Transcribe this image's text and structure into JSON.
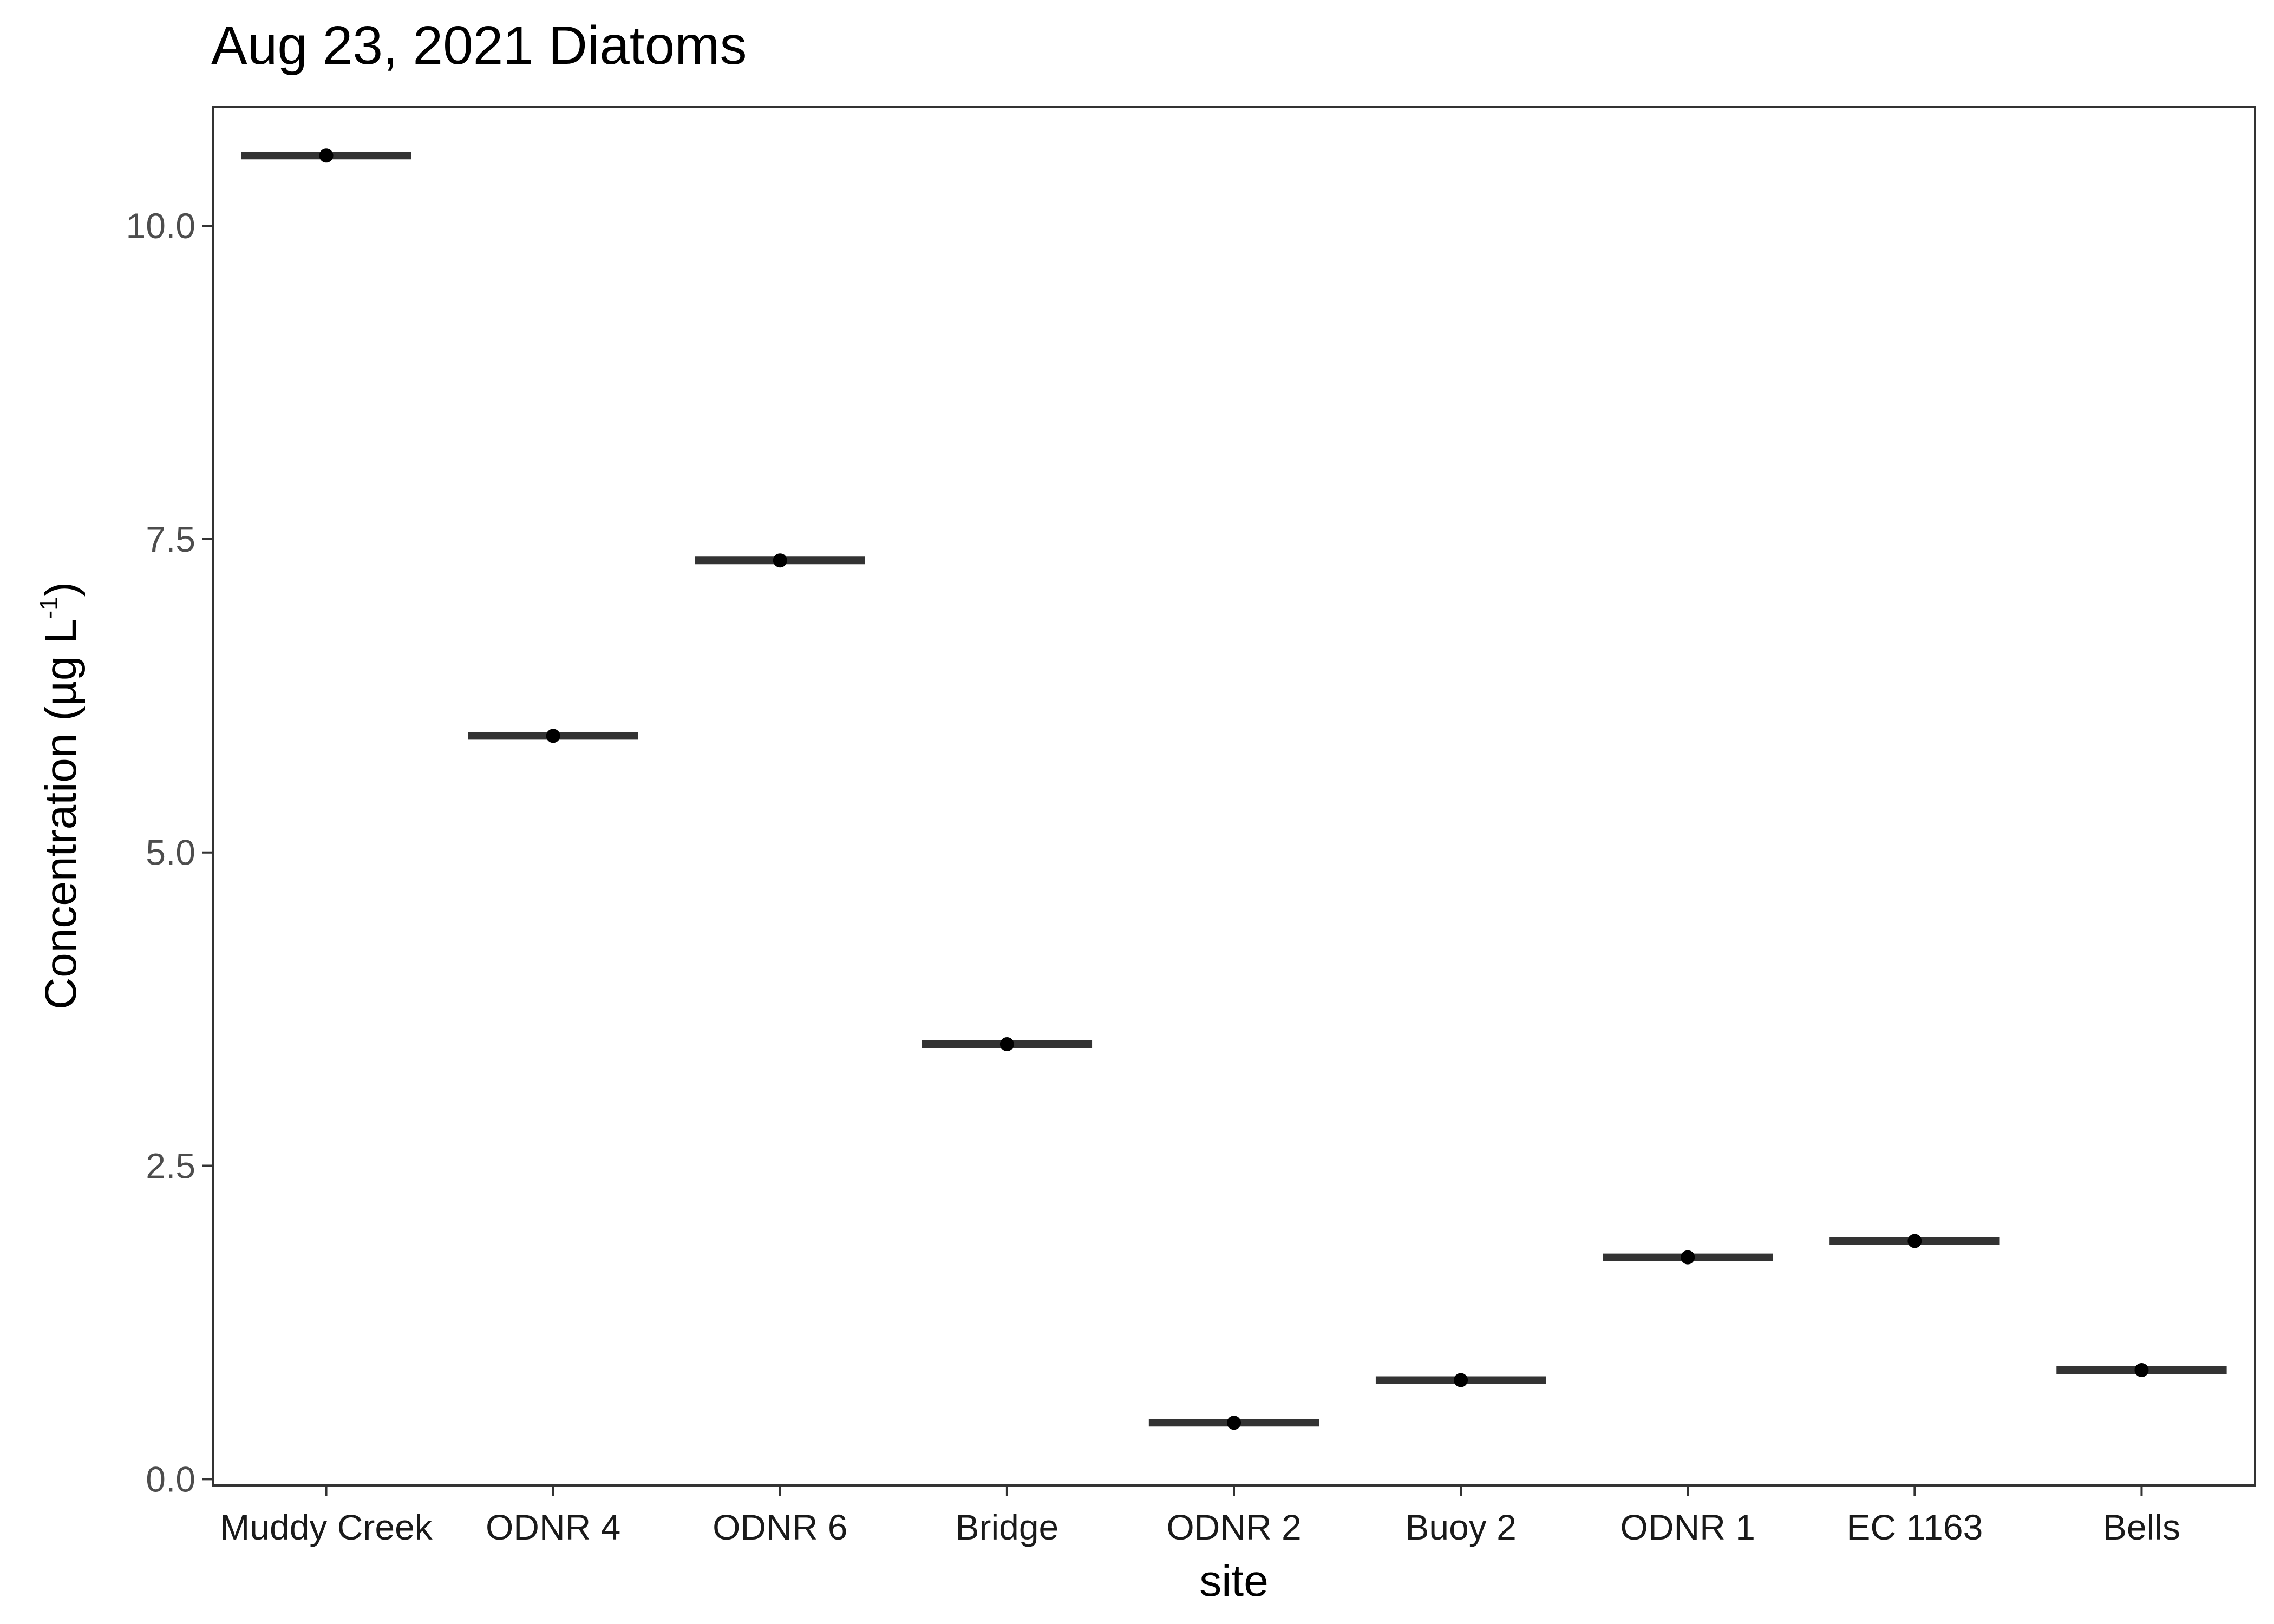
{
  "chart_data": {
    "type": "crossbar",
    "title": "Aug 23, 2021 Diatoms",
    "xlabel": "site",
    "ylabel": {
      "main": "Concentration (µg L",
      "superscript": "-1",
      "close": ")"
    },
    "categories": [
      "Muddy Creek",
      "ODNR 4",
      "ODNR 6",
      "Bridge",
      "ODNR 2",
      "Buoy 2",
      "ODNR 1",
      "EC 1163",
      "Bells"
    ],
    "values": [
      10.56,
      5.93,
      7.33,
      3.47,
      0.45,
      0.79,
      1.77,
      1.9,
      0.87
    ],
    "ylim": [
      -0.05,
      10.95
    ],
    "yticks": [
      0.0,
      2.5,
      5.0,
      7.5,
      10.0
    ],
    "ytick_labels": [
      "0.0",
      "2.5",
      "5.0",
      "7.5",
      "10.0"
    ],
    "grid": false,
    "legend": "none",
    "colors": {
      "bar": "#333333",
      "point": "#000000",
      "panel_border": "#333333",
      "tick": "#333333",
      "tick_label": "#4d4d4d",
      "background": "#ffffff"
    }
  }
}
